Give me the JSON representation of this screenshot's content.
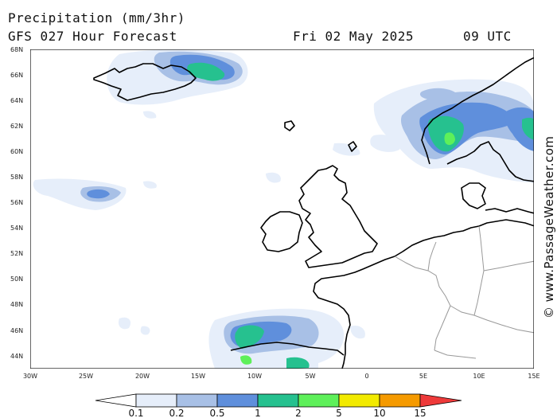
{
  "header": {
    "title": "Precipitation (mm/3hr)",
    "model": "GFS 027 Hour Forecast",
    "date": "Fri 02 May 2025",
    "time": "09 UTC"
  },
  "credit": "© www.PassageWeather.com",
  "axes": {
    "lat_labels": [
      "68N",
      "66N",
      "64N",
      "62N",
      "60N",
      "58N",
      "56N",
      "54N",
      "52N",
      "50N",
      "48N",
      "46N",
      "44N"
    ],
    "lon_labels": [
      "30W",
      "25W",
      "20W",
      "15W",
      "10W",
      "5W",
      "0",
      "5E",
      "10E",
      "15E"
    ]
  },
  "legend": {
    "labels": [
      "0.1",
      "0.2",
      "0.5",
      "1",
      "2",
      "5",
      "10",
      "15"
    ],
    "colors": [
      "#ffffff",
      "#e6eefa",
      "#a8c0e6",
      "#5f8fdc",
      "#26c18f",
      "#5ef05a",
      "#f2ea00",
      "#f59a00",
      "#ee3a3a"
    ]
  },
  "map": {
    "region": "North Atlantic / Northwest Europe",
    "land_color": "#ffffff",
    "coast_color": "#000000",
    "border_color": "#999999"
  }
}
